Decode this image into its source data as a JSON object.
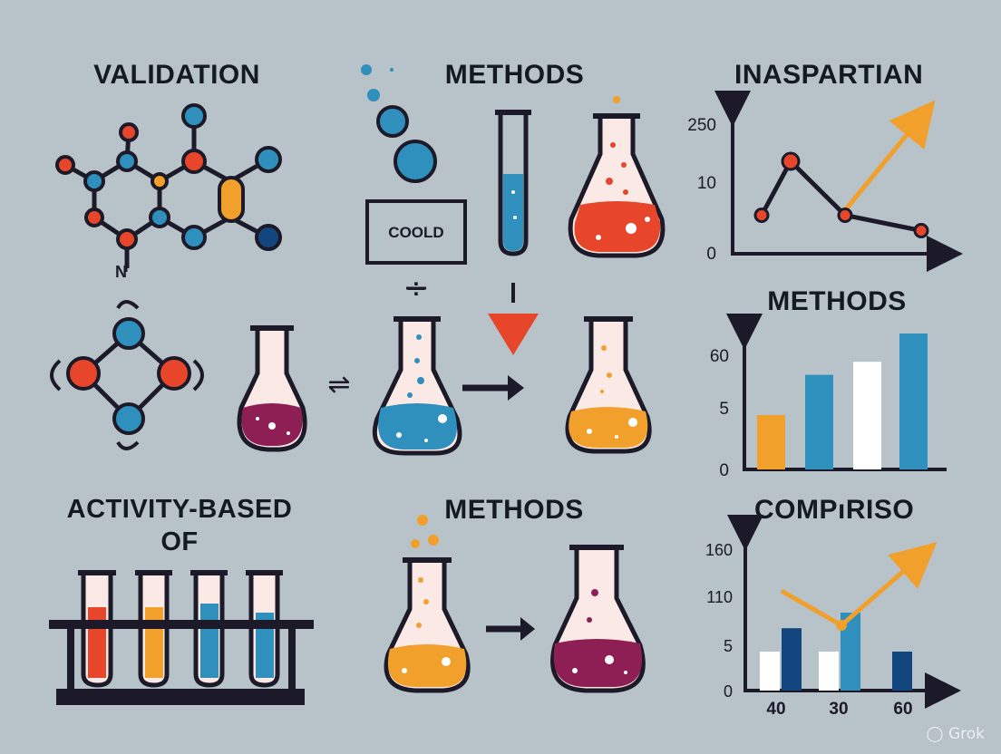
{
  "colors": {
    "background": "#b7c2c9",
    "outline": "#1c1a28",
    "blue": "#2f8fbd",
    "red": "#e8462b",
    "orange": "#f2a02c",
    "purple": "#8e1f55",
    "navy": "#13457e",
    "white": "#ffffff"
  },
  "headings": {
    "validation": "VALIDATION",
    "methods_top": "METHODS",
    "inaspartian": "INASPARTIAN",
    "methods_mid": "METHODS",
    "activity_line1": "ACTIVITY-BASED",
    "activity_line2": "OF",
    "methods_bottom": "METHODS",
    "compriso": "COMPıRISO"
  },
  "diagram": {
    "cool_box_label": "COOLD",
    "molecule_atom_label": "N",
    "divide_symbol": "÷",
    "equilibrium_symbol": "⇌"
  },
  "chart_data": [
    {
      "type": "line",
      "title": "INASPARTIAN",
      "y_tick_labels": [
        "0",
        "10",
        "250"
      ],
      "points": [
        {
          "x": 1,
          "y": 5
        },
        {
          "x": 2,
          "y": 12
        },
        {
          "x": 3,
          "y": 5
        },
        {
          "x": 4,
          "y": 3
        }
      ],
      "trend_arrow": "up-right",
      "colors": {
        "line": "#1c1a28",
        "points": "#e8462b",
        "arrow": "#f2a02c"
      }
    },
    {
      "type": "bar",
      "title": "METHODS",
      "y_tick_labels": [
        "0",
        "5",
        "60"
      ],
      "categories": [
        "",
        "",
        "",
        ""
      ],
      "values": [
        5,
        8.7,
        9.9,
        12.5
      ],
      "bar_colors": [
        "#f2a02c",
        "#2f8fbd",
        "#ffffff",
        "#2f8fbd"
      ]
    },
    {
      "type": "bar",
      "title": "COMPıRISO",
      "y_tick_labels": [
        "0",
        "5",
        "110",
        "160"
      ],
      "x_tick_labels": [
        "40",
        "30",
        "60"
      ],
      "series": [
        {
          "values": [
            5,
            5,
            5
          ],
          "colors": [
            "#ffffff",
            "#ffffff",
            "#13457e"
          ]
        },
        {
          "values": [
            8,
            10,
            0
          ],
          "colors": [
            "#13457e",
            "#2f8fbd",
            "#13457e"
          ]
        }
      ],
      "overlay_line": {
        "points": [
          1.5,
          0.7,
          3.2
        ],
        "color": "#f2a02c",
        "arrow": "up-right"
      }
    }
  ],
  "watermark": "Grok"
}
